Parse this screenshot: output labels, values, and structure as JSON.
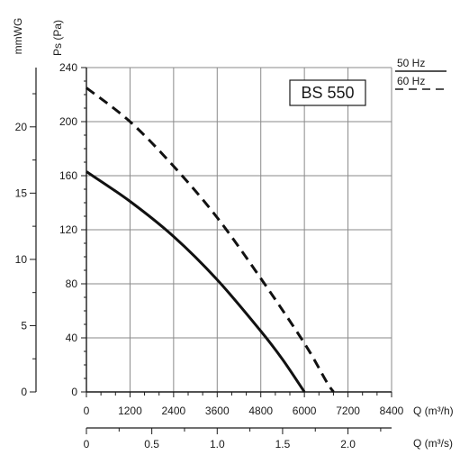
{
  "chart_data": {
    "type": "line",
    "title": "BS 550",
    "ylabel": "Ps (Pa)",
    "ylabel_secondary": "mmWG",
    "xlabel": "Q (m³/h)",
    "xlabel_secondary": "Q (m³/s)",
    "xlim": [
      0,
      8400
    ],
    "ylim": [
      0,
      240
    ],
    "x_ticks": [
      0,
      1200,
      2400,
      3600,
      4800,
      6000,
      7200,
      8400
    ],
    "y_ticks": [
      0,
      40,
      80,
      120,
      160,
      200,
      240
    ],
    "y2_ticks": [
      0,
      5,
      10,
      15,
      20
    ],
    "x2_ticks": [
      "0",
      "0.5",
      "1.0",
      "1.5",
      "2.0"
    ],
    "grid": true,
    "legend_position": "top-right, outside plot",
    "series": [
      {
        "name": "50 Hz",
        "style": "solid",
        "x": [
          0,
          1200,
          2400,
          3600,
          4800,
          5400,
          6000
        ],
        "y": [
          163,
          141,
          115,
          83,
          45,
          24,
          0
        ]
      },
      {
        "name": "60 Hz",
        "style": "dashed",
        "x": [
          0,
          1200,
          2400,
          3600,
          4800,
          6000,
          6600,
          6800
        ],
        "y": [
          225,
          200,
          167,
          129,
          84,
          36,
          8,
          0
        ]
      }
    ]
  }
}
